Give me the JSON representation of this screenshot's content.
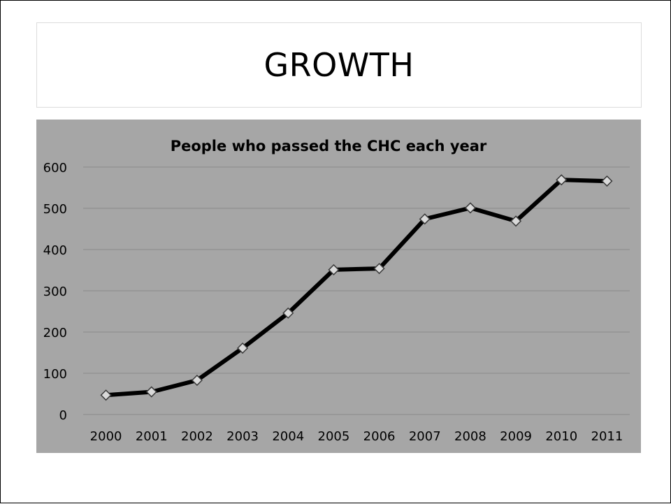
{
  "slide": {
    "title": "GROWTH"
  },
  "chart_data": {
    "type": "line",
    "title": "People who passed the CHC each year",
    "xlabel": "",
    "ylabel": "",
    "categories": [
      "2000",
      "2001",
      "2002",
      "2003",
      "2004",
      "2005",
      "2006",
      "2007",
      "2008",
      "2009",
      "2010",
      "2011"
    ],
    "series": [
      {
        "values": [
          47,
          55,
          83,
          161,
          246,
          351,
          354,
          474,
          501,
          469,
          569,
          566
        ]
      }
    ],
    "ylim": [
      0,
      600
    ],
    "yticks": [
      0,
      100,
      200,
      300,
      400,
      500,
      600
    ],
    "grid": true,
    "legend": "none",
    "marker": "diamond",
    "colors": {
      "plot_background": "#a6a6a6",
      "line": "#000000",
      "marker_fill": "#d9d9d9",
      "gridline": "#8a8a8a"
    }
  }
}
